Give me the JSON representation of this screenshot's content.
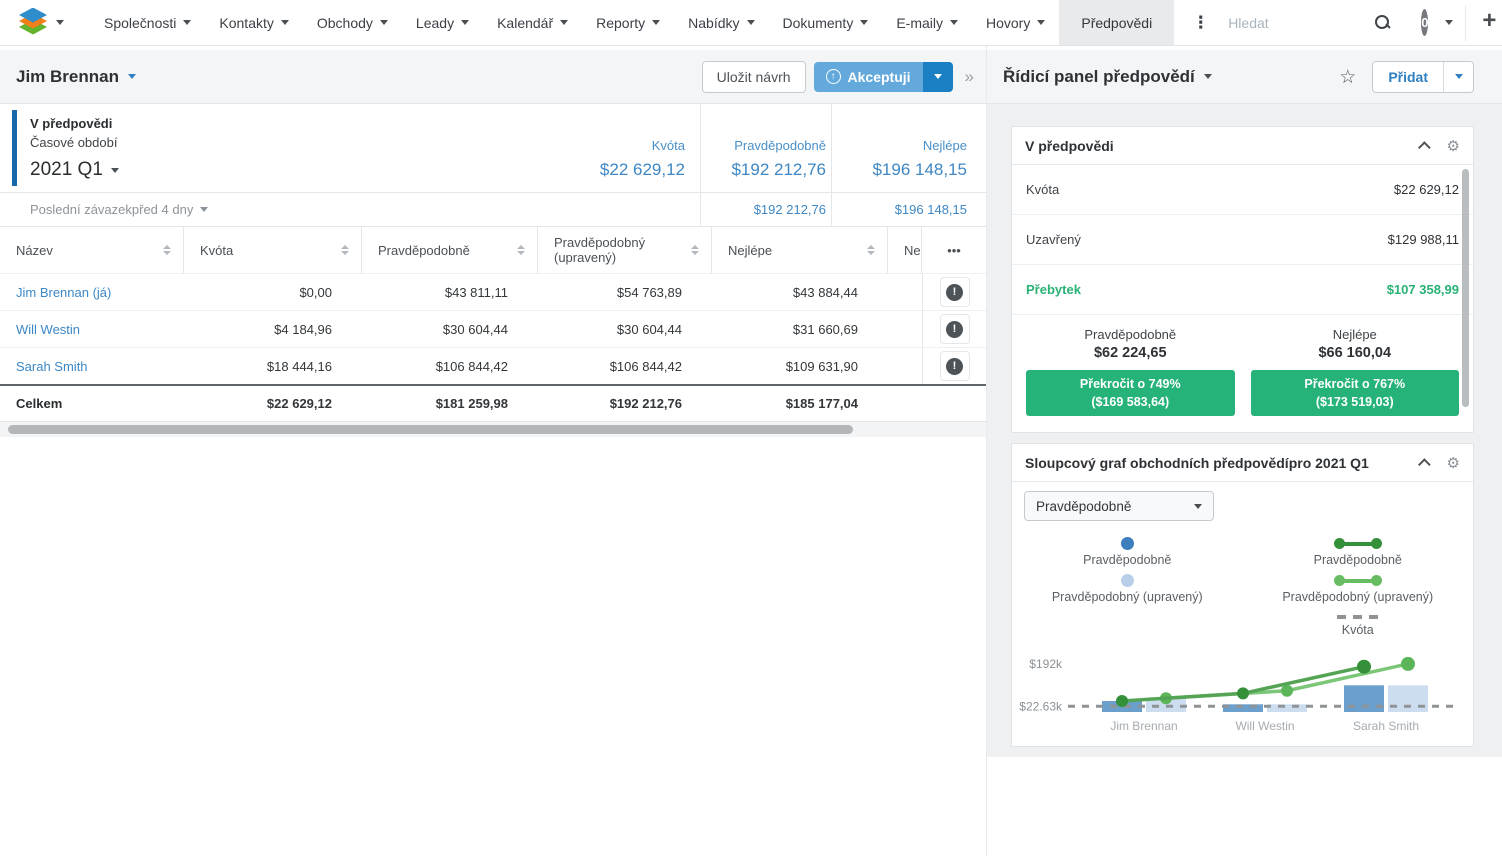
{
  "nav": {
    "items": [
      "Společnosti",
      "Kontakty",
      "Obchody",
      "Leady",
      "Kalendář",
      "Reporty",
      "Nabídky",
      "Dokumenty",
      "E-maily",
      "Hovory"
    ],
    "active_tab": "Předpovědi",
    "search_placeholder": "Hledat",
    "notification_count": "0"
  },
  "icons": {
    "kebab": "⋮",
    "plus": "+",
    "star": "☆",
    "gear": "⚙",
    "collapse": "»",
    "alert": "!",
    "ellipsis": "•••",
    "accept_arrow": "↑"
  },
  "header": {
    "title": "Jim Brennan",
    "save_draft_label": "Uložit návrh",
    "accept_label": "Akceptuji"
  },
  "forecast_panel": {
    "title": "V předpovědi",
    "period_label": "Časové období",
    "period": "2021 Q1",
    "columns": [
      {
        "label": "Kvóta",
        "value": "$22 629,12"
      },
      {
        "label": "Pravděpodobně",
        "value": "$192 212,76"
      },
      {
        "label": "Nejlépe",
        "value": "$196 148,15"
      }
    ],
    "last_commit": {
      "label": "Poslední závazekpřed 4 dny",
      "values": [
        "$192 212,76",
        "$196 148,15"
      ]
    }
  },
  "table": {
    "columns": [
      "Název",
      "Kvóta",
      "Pravděpodobně",
      "Pravděpodobný (upravený)",
      "Nejlépe",
      "Ne"
    ],
    "rows": [
      {
        "name": "Jim Brennan (já)",
        "kvota": "$0,00",
        "pravdepodobne": "$43 811,11",
        "upraveny": "$54 763,89",
        "nejlepe": "$43 884,44"
      },
      {
        "name": "Will Westin",
        "kvota": "$4 184,96",
        "pravdepodobne": "$30 604,44",
        "upraveny": "$30 604,44",
        "nejlepe": "$31 660,69"
      },
      {
        "name": "Sarah Smith",
        "kvota": "$18 444,16",
        "pravdepodobne": "$106 844,42",
        "upraveny": "$106 844,42",
        "nejlepe": "$109 631,90"
      }
    ],
    "total": {
      "name": "Celkem",
      "kvota": "$22 629,12",
      "pravdepodobne": "$181 259,98",
      "upraveny": "$192 212,76",
      "nejlepe": "$185 177,04"
    }
  },
  "dashboard": {
    "title": "Řídicí panel předpovědí",
    "add_label": "Přidat",
    "dashlet_forecast": {
      "title": "V předpovědi",
      "rows": [
        {
          "label": "Kvóta",
          "value": "$22 629,12",
          "highlight": false
        },
        {
          "label": "Uzavřený",
          "value": "$129 988,11",
          "highlight": false
        },
        {
          "label": "Přebytek",
          "value": "$107 358,99",
          "highlight": true
        }
      ],
      "stats": [
        {
          "label": "Pravděpodobně",
          "value": "$62 224,65",
          "button_line1": "Překročit o 749%",
          "button_line2": "($169 583,64)"
        },
        {
          "label": "Nejlépe",
          "value": "$66 160,04",
          "button_line1": "Překročit o 767%",
          "button_line2": "($173 519,03)"
        }
      ]
    },
    "dashlet_chart": {
      "title": "Sloupcový graf obchodních předpovědípro 2021 Q1",
      "dropdown_value": "Pravděpodobně",
      "legend": {
        "bar_items": [
          {
            "label": "Pravděpodobně",
            "color": "#3d7fbc"
          },
          {
            "label": "Pravděpodobný (upravený)",
            "color": "#b9cfe8"
          }
        ],
        "line_items": [
          {
            "label": "Pravděpodobně",
            "color": "#35903a"
          },
          {
            "label": "Pravděpodobný (upravený)",
            "color": "#68bd62"
          }
        ],
        "quota_item": {
          "label": "Kvóta",
          "color": "#8f9396"
        }
      }
    }
  },
  "chart_data": {
    "type": "bar+line",
    "title": "Sloupcový graf obchodních předpovědí pro 2021 Q1",
    "categories": [
      "Jim Brennan",
      "Will Westin",
      "Sarah Smith"
    ],
    "bar_series": [
      {
        "name": "Pravděpodobně",
        "color": "#6b9fcc",
        "values": [
          43811.11,
          30604.44,
          106844.42
        ]
      },
      {
        "name": "Pravděpodobný (upravený)",
        "color": "#ccddf0",
        "values": [
          54763.89,
          30604.44,
          106844.42
        ]
      }
    ],
    "line_series": [
      {
        "name": "Pravděpodobně",
        "color": "#55a455",
        "dot_color": "#35903a",
        "values": [
          43811.11,
          74415.55,
          181259.98
        ]
      },
      {
        "name": "Pravděpodobný (upravený)",
        "color": "#7cc678",
        "dot_color": "#5cb558",
        "values": [
          54763.89,
          85368.33,
          192212.76
        ]
      }
    ],
    "quota_line": {
      "name": "Kvóta",
      "value": 22629.12,
      "color": "#8f9396"
    },
    "y_ticks": [
      {
        "label": "$192k",
        "value": 192000
      },
      {
        "label": "$22.63k",
        "value": 22630
      }
    ],
    "ylim": [
      0,
      200000
    ],
    "legend_position": "top"
  }
}
